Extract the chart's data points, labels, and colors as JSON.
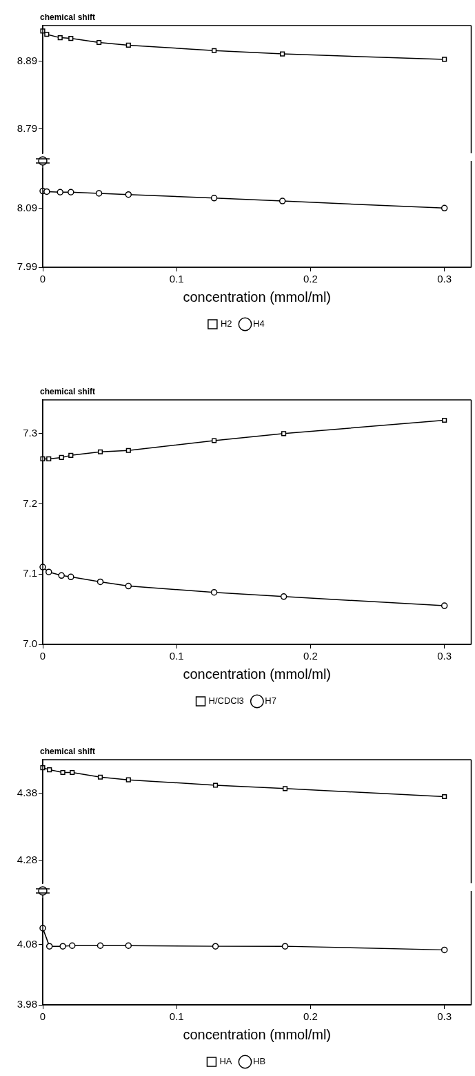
{
  "chart_data": [
    {
      "type": "line",
      "ylabel": "chemical shift",
      "x": [
        0,
        0.003,
        0.013,
        0.021,
        0.042,
        0.064,
        0.128,
        0.179,
        0.3
      ],
      "xlim": [
        0,
        0.32
      ],
      "xticks": [
        0,
        0.1,
        0.2,
        0.3
      ],
      "ylim": [
        8.754,
        8.943
      ],
      "yticks": [
        8.79,
        8.89
      ],
      "tick_labels": "y",
      "grid": false,
      "legend": false,
      "series": [
        {
          "color": "#000000",
          "marker": "square",
          "values": [
            8.935,
            8.93,
            8.925,
            8.924,
            8.918,
            8.914,
            8.906,
            8.901,
            8.893
          ]
        }
      ]
    },
    {
      "type": "line",
      "xlabel": "concentration (mmol/ml)",
      "x": [
        0,
        0.003,
        0.013,
        0.021,
        0.042,
        0.064,
        0.128,
        0.179,
        0.3
      ],
      "xlim": [
        0,
        0.32
      ],
      "xticks": [
        0,
        0.1,
        0.2,
        0.3
      ],
      "ylim": [
        7.99,
        8.157
      ],
      "yticks": [
        7.99,
        8.09
      ],
      "grid": false,
      "legend": "bottom",
      "series": [
        {
          "name": "H2",
          "color": "#000000",
          "marker": "square",
          "values": [
            null,
            null,
            null,
            null,
            null,
            null,
            null,
            null,
            null
          ]
        },
        {
          "name": "H4",
          "color": "#000000",
          "marker": "circle",
          "values": [
            8.119,
            8.118,
            8.117,
            8.117,
            8.115,
            8.113,
            8.107,
            8.102,
            8.09
          ]
        }
      ]
    },
    {
      "type": "line",
      "ylabel": "chemical shift",
      "xlabel": "concentration (mmol/ml)",
      "x": [
        0,
        0.0045,
        0.014,
        0.021,
        0.043,
        0.064,
        0.128,
        0.18,
        0.3
      ],
      "xlim": [
        0,
        0.32
      ],
      "xticks": [
        0,
        0.1,
        0.2,
        0.3
      ],
      "ylim": [
        7.0,
        7.348
      ],
      "yticks": [
        {
          "value": 7.0,
          "label": "7.0"
        },
        7.1,
        7.2,
        7.3
      ],
      "grid": false,
      "legend": "bottom",
      "series": [
        {
          "name": "H/CDCl3",
          "color": "#000000",
          "marker": "square",
          "values": [
            7.264,
            7.264,
            7.266,
            7.269,
            7.274,
            7.276,
            7.29,
            7.3,
            7.319
          ]
        },
        {
          "name": "H7",
          "color": "#000000",
          "marker": "circle",
          "values": [
            7.11,
            7.103,
            7.098,
            7.096,
            7.089,
            7.083,
            7.074,
            7.068,
            7.055
          ]
        }
      ]
    },
    {
      "type": "line",
      "ylabel": "chemical shift",
      "x": [
        0,
        0.005,
        0.015,
        0.022,
        0.043,
        0.064,
        0.129,
        0.181,
        0.3
      ],
      "xlim": [
        0,
        0.32
      ],
      "xticks": [
        0,
        0.1,
        0.2,
        0.3
      ],
      "ylim": [
        4.246,
        4.43
      ],
      "yticks": [
        4.28,
        4.38
      ],
      "tick_labels": "y",
      "grid": false,
      "legend": false,
      "series": [
        {
          "color": "#000000",
          "marker": "square",
          "values": [
            4.418,
            4.415,
            4.411,
            4.411,
            4.404,
            4.4,
            4.392,
            4.387,
            4.375
          ]
        }
      ]
    },
    {
      "type": "line",
      "xlabel": "concentration (mmol/ml)",
      "x": [
        0,
        0.005,
        0.015,
        0.022,
        0.043,
        0.064,
        0.129,
        0.181,
        0.3
      ],
      "xlim": [
        0,
        0.32
      ],
      "xticks": [
        0,
        0.1,
        0.2,
        0.3
      ],
      "ylim": [
        3.98,
        4.156
      ],
      "yticks": [
        3.98,
        4.08
      ],
      "grid": false,
      "legend": "bottom",
      "series": [
        {
          "name": "HA",
          "color": "#000000",
          "marker": "square",
          "values": [
            null,
            null,
            null,
            null,
            null,
            null,
            null,
            null,
            null
          ]
        },
        {
          "name": "HB",
          "color": "#000000",
          "marker": "circle",
          "values": [
            4.107,
            4.077,
            4.077,
            4.078,
            4.078,
            4.078,
            4.077,
            4.077,
            4.071
          ]
        }
      ]
    }
  ]
}
